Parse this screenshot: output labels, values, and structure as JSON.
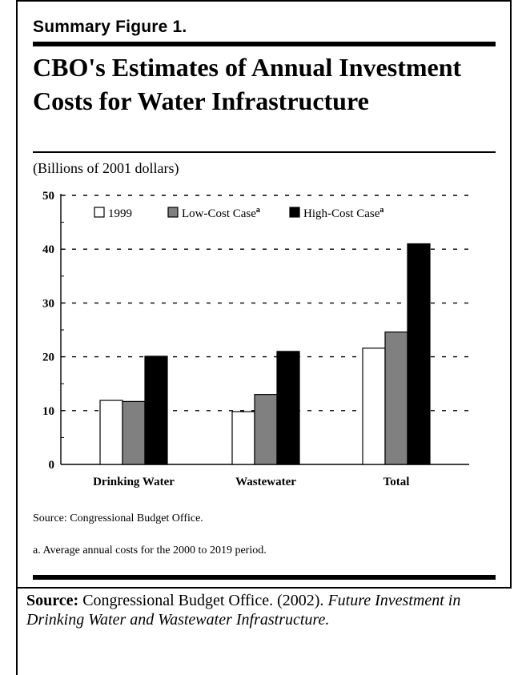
{
  "figure": {
    "label": "Summary Figure 1.",
    "title": "CBO's Estimates of Annual Investment Costs for Water Infrastructure",
    "units": "(Billions of 2001 dollars)",
    "source_note": "Source:   Congressional Budget Office.",
    "footnote": "a.  Average annual costs for the 2000 to 2019 period."
  },
  "citation": {
    "label": "Source:",
    "text": " Congressional Budget Office. (2002). ",
    "title_italic": "Future Investment in Drinking Water and Wastewater Infrastructure."
  },
  "chart_data": {
    "type": "bar",
    "title": "",
    "xlabel": "",
    "ylabel": "",
    "categories": [
      "Drinking Water",
      "Wastewater",
      "Total"
    ],
    "series": [
      {
        "name": "1999",
        "legend_suffix": "",
        "color": "#ffffff",
        "values": [
          11.9,
          9.8,
          21.6
        ]
      },
      {
        "name": "Low-Cost Case",
        "legend_suffix": "a",
        "color": "#808080",
        "values": [
          11.7,
          13.0,
          24.6
        ]
      },
      {
        "name": "High-Cost Case",
        "legend_suffix": "a",
        "color": "#000000",
        "values": [
          20.1,
          21.0,
          41.0
        ]
      }
    ],
    "ylim": [
      0,
      50
    ],
    "yticks": [
      0,
      10,
      20,
      30,
      40,
      50
    ],
    "grid": true,
    "legend_position": "top"
  }
}
